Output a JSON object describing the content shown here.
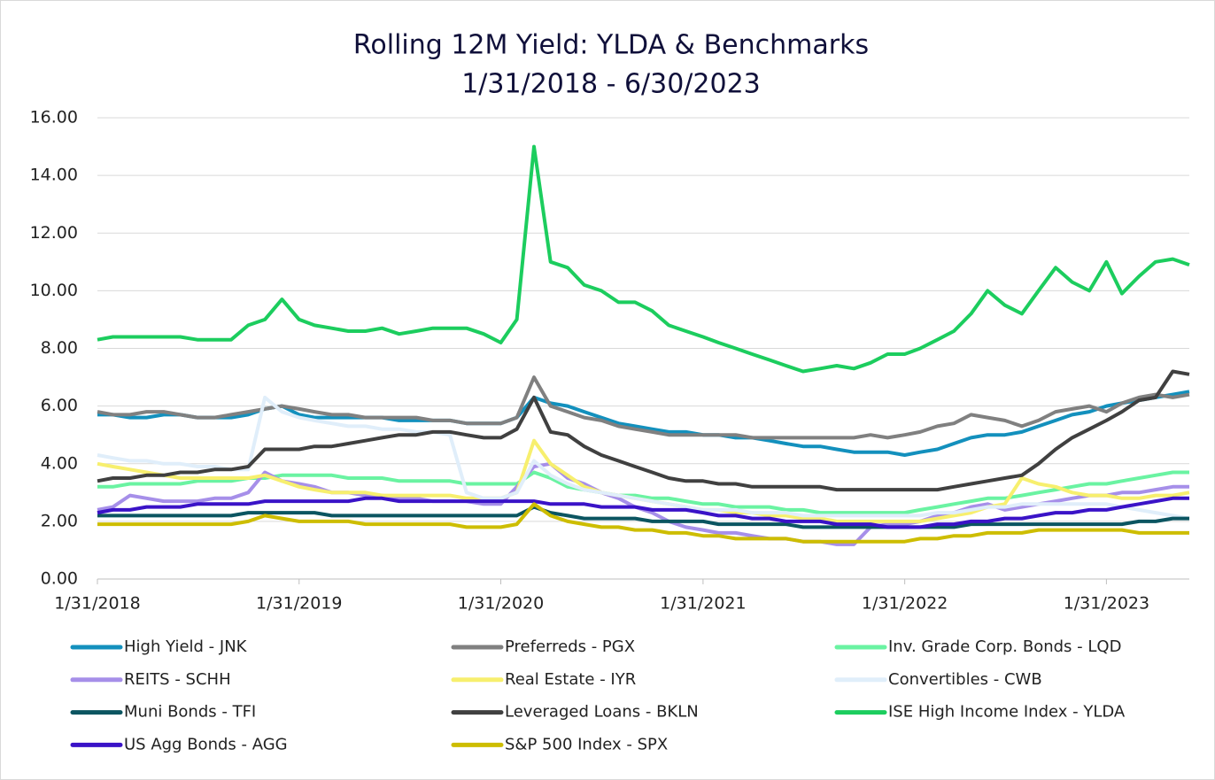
{
  "chart_data": {
    "type": "line",
    "title": "Rolling 12M Yield: YLDA & Benchmarks",
    "subtitle": "1/31/2018 - 6/30/2023",
    "x": [
      "1/31/2018",
      "2/28/2018",
      "3/31/2018",
      "4/30/2018",
      "5/31/2018",
      "6/30/2018",
      "7/31/2018",
      "8/31/2018",
      "9/30/2018",
      "10/31/2018",
      "11/30/2018",
      "12/31/2018",
      "1/31/2019",
      "2/28/2019",
      "3/31/2019",
      "4/30/2019",
      "5/31/2019",
      "6/30/2019",
      "7/31/2019",
      "8/31/2019",
      "9/30/2019",
      "10/31/2019",
      "11/30/2019",
      "12/31/2019",
      "1/31/2020",
      "2/29/2020",
      "3/31/2020",
      "4/30/2020",
      "5/31/2020",
      "6/30/2020",
      "7/31/2020",
      "8/31/2020",
      "9/30/2020",
      "10/31/2020",
      "11/30/2020",
      "12/31/2020",
      "1/31/2021",
      "2/28/2021",
      "3/31/2021",
      "4/30/2021",
      "5/31/2021",
      "6/30/2021",
      "7/31/2021",
      "8/31/2021",
      "9/30/2021",
      "10/31/2021",
      "11/30/2021",
      "12/31/2021",
      "1/31/2022",
      "2/28/2022",
      "3/31/2022",
      "4/30/2022",
      "5/31/2022",
      "6/30/2022",
      "7/31/2022",
      "8/31/2022",
      "9/30/2022",
      "10/31/2022",
      "11/30/2022",
      "12/31/2022",
      "1/31/2023",
      "2/28/2023",
      "3/31/2023",
      "4/30/2023",
      "5/31/2023",
      "6/30/2023"
    ],
    "xlim": [
      "1/31/2018",
      "6/30/2023"
    ],
    "xticks": [
      "1/31/2018",
      "1/31/2019",
      "1/31/2020",
      "1/31/2021",
      "1/31/2022",
      "1/31/2023"
    ],
    "ylim": [
      0,
      16
    ],
    "yticks": [
      {
        "value": 0,
        "label": "0.00"
      },
      {
        "value": 2,
        "label": "2.00"
      },
      {
        "value": 4,
        "label": "4.00"
      },
      {
        "value": 6,
        "label": "6.00"
      },
      {
        "value": 8,
        "label": "8.00"
      },
      {
        "value": 10,
        "label": "10.00"
      },
      {
        "value": 12,
        "label": "12.00"
      },
      {
        "value": 14,
        "label": "14.00"
      },
      {
        "value": 16,
        "label": "16.00"
      }
    ],
    "grid": true,
    "series": [
      {
        "name": "High Yield - JNK",
        "color": "#1390bd",
        "values": [
          5.7,
          5.7,
          5.6,
          5.6,
          5.7,
          5.7,
          5.6,
          5.6,
          5.6,
          5.7,
          5.9,
          6.0,
          5.7,
          5.6,
          5.6,
          5.6,
          5.6,
          5.6,
          5.5,
          5.5,
          5.5,
          5.5,
          5.4,
          5.4,
          5.4,
          5.6,
          6.3,
          6.1,
          6.0,
          5.8,
          5.6,
          5.4,
          5.3,
          5.2,
          5.1,
          5.1,
          5.0,
          5.0,
          4.9,
          4.9,
          4.8,
          4.7,
          4.6,
          4.6,
          4.5,
          4.4,
          4.4,
          4.4,
          4.3,
          4.4,
          4.5,
          4.7,
          4.9,
          5.0,
          5.0,
          5.1,
          5.3,
          5.5,
          5.7,
          5.8,
          6.0,
          6.1,
          6.2,
          6.3,
          6.4,
          6.5
        ]
      },
      {
        "name": "Preferreds - PGX",
        "color": "#808080",
        "values": [
          5.8,
          5.7,
          5.7,
          5.8,
          5.8,
          5.7,
          5.6,
          5.6,
          5.7,
          5.8,
          5.9,
          6.0,
          5.9,
          5.8,
          5.7,
          5.7,
          5.6,
          5.6,
          5.6,
          5.6,
          5.5,
          5.5,
          5.4,
          5.4,
          5.4,
          5.6,
          7.0,
          6.0,
          5.8,
          5.6,
          5.5,
          5.3,
          5.2,
          5.1,
          5.0,
          5.0,
          5.0,
          5.0,
          5.0,
          4.9,
          4.9,
          4.9,
          4.9,
          4.9,
          4.9,
          4.9,
          5.0,
          4.9,
          5.0,
          5.1,
          5.3,
          5.4,
          5.7,
          5.6,
          5.5,
          5.3,
          5.5,
          5.8,
          5.9,
          6.0,
          5.8,
          6.1,
          6.3,
          6.4,
          6.3,
          6.4
        ]
      },
      {
        "name": "Inv. Grade Corp. Bonds - LQD",
        "color": "#6af3a2",
        "values": [
          3.2,
          3.2,
          3.3,
          3.3,
          3.3,
          3.3,
          3.4,
          3.4,
          3.4,
          3.5,
          3.5,
          3.6,
          3.6,
          3.6,
          3.6,
          3.5,
          3.5,
          3.5,
          3.4,
          3.4,
          3.4,
          3.4,
          3.3,
          3.3,
          3.3,
          3.3,
          3.7,
          3.5,
          3.2,
          3.1,
          3.0,
          2.9,
          2.9,
          2.8,
          2.8,
          2.7,
          2.6,
          2.6,
          2.5,
          2.5,
          2.5,
          2.4,
          2.4,
          2.3,
          2.3,
          2.3,
          2.3,
          2.3,
          2.3,
          2.4,
          2.5,
          2.6,
          2.7,
          2.8,
          2.8,
          2.9,
          3.0,
          3.1,
          3.2,
          3.3,
          3.3,
          3.4,
          3.5,
          3.6,
          3.7,
          3.7
        ]
      },
      {
        "name": "REITS - SCHH",
        "color": "#a68fe9",
        "values": [
          2.4,
          2.5,
          2.9,
          2.8,
          2.7,
          2.7,
          2.7,
          2.8,
          2.8,
          3.0,
          3.7,
          3.4,
          3.3,
          3.2,
          3.0,
          3.0,
          2.9,
          2.9,
          2.8,
          2.8,
          2.7,
          2.7,
          2.7,
          2.6,
          2.6,
          3.2,
          3.9,
          4.0,
          3.5,
          3.3,
          3.0,
          2.8,
          2.5,
          2.3,
          2.0,
          1.8,
          1.7,
          1.6,
          1.6,
          1.5,
          1.4,
          1.4,
          1.3,
          1.3,
          1.2,
          1.2,
          1.8,
          1.9,
          1.9,
          2.0,
          2.2,
          2.3,
          2.5,
          2.6,
          2.4,
          2.5,
          2.6,
          2.7,
          2.8,
          2.9,
          2.9,
          3.0,
          3.0,
          3.1,
          3.2,
          3.2
        ]
      },
      {
        "name": "Real Estate - IYR",
        "color": "#f7ef6e",
        "values": [
          4.0,
          3.9,
          3.8,
          3.7,
          3.6,
          3.5,
          3.5,
          3.5,
          3.5,
          3.5,
          3.6,
          3.4,
          3.2,
          3.1,
          3.0,
          3.0,
          3.0,
          2.9,
          2.9,
          2.9,
          2.9,
          2.9,
          2.8,
          2.8,
          2.8,
          3.0,
          4.8,
          4.0,
          3.6,
          3.2,
          3.0,
          2.9,
          2.8,
          2.7,
          2.6,
          2.5,
          2.4,
          2.4,
          2.3,
          2.3,
          2.2,
          2.2,
          2.1,
          2.1,
          2.0,
          2.0,
          2.0,
          2.0,
          2.0,
          2.0,
          2.1,
          2.2,
          2.3,
          2.5,
          2.6,
          3.5,
          3.3,
          3.2,
          3.0,
          2.9,
          2.9,
          2.8,
          2.8,
          2.9,
          2.9,
          3.0
        ]
      },
      {
        "name": "Convertibles - CWB",
        "color": "#e0eefa",
        "values": [
          4.3,
          4.2,
          4.1,
          4.1,
          4.0,
          4.0,
          3.9,
          3.9,
          3.8,
          3.8,
          6.3,
          5.8,
          5.6,
          5.5,
          5.4,
          5.3,
          5.3,
          5.2,
          5.2,
          5.1,
          5.1,
          5.0,
          3.0,
          2.8,
          2.8,
          3.0,
          4.1,
          3.6,
          3.3,
          3.1,
          3.0,
          2.9,
          2.8,
          2.7,
          2.6,
          2.5,
          2.4,
          2.4,
          2.4,
          2.3,
          2.3,
          2.3,
          2.2,
          2.2,
          2.2,
          2.2,
          2.2,
          2.2,
          2.2,
          2.2,
          2.3,
          2.3,
          2.4,
          2.5,
          2.5,
          2.6,
          2.6,
          2.6,
          2.6,
          2.6,
          2.6,
          2.5,
          2.4,
          2.3,
          2.2,
          2.1
        ]
      },
      {
        "name": "Muni Bonds - TFI",
        "color": "#0b5561",
        "values": [
          2.2,
          2.2,
          2.2,
          2.2,
          2.2,
          2.2,
          2.2,
          2.2,
          2.2,
          2.3,
          2.3,
          2.3,
          2.3,
          2.3,
          2.2,
          2.2,
          2.2,
          2.2,
          2.2,
          2.2,
          2.2,
          2.2,
          2.2,
          2.2,
          2.2,
          2.2,
          2.5,
          2.3,
          2.2,
          2.1,
          2.1,
          2.1,
          2.1,
          2.0,
          2.0,
          2.0,
          2.0,
          1.9,
          1.9,
          1.9,
          1.9,
          1.9,
          1.8,
          1.8,
          1.8,
          1.8,
          1.8,
          1.8,
          1.8,
          1.8,
          1.8,
          1.8,
          1.9,
          1.9,
          1.9,
          1.9,
          1.9,
          1.9,
          1.9,
          1.9,
          1.9,
          1.9,
          2.0,
          2.0,
          2.1,
          2.1
        ]
      },
      {
        "name": "Leveraged Loans - BKLN",
        "color": "#404040",
        "values": [
          3.4,
          3.5,
          3.5,
          3.6,
          3.6,
          3.7,
          3.7,
          3.8,
          3.8,
          3.9,
          4.5,
          4.5,
          4.5,
          4.6,
          4.6,
          4.7,
          4.8,
          4.9,
          5.0,
          5.0,
          5.1,
          5.1,
          5.0,
          4.9,
          4.9,
          5.2,
          6.3,
          5.1,
          5.0,
          4.6,
          4.3,
          4.1,
          3.9,
          3.7,
          3.5,
          3.4,
          3.4,
          3.3,
          3.3,
          3.2,
          3.2,
          3.2,
          3.2,
          3.2,
          3.1,
          3.1,
          3.1,
          3.1,
          3.1,
          3.1,
          3.1,
          3.2,
          3.3,
          3.4,
          3.5,
          3.6,
          4.0,
          4.5,
          4.9,
          5.2,
          5.5,
          5.8,
          6.2,
          6.3,
          7.2,
          7.1
        ]
      },
      {
        "name": "ISE High Income Index - YLDA",
        "color": "#1ccd5e",
        "values": [
          8.3,
          8.4,
          8.4,
          8.4,
          8.4,
          8.4,
          8.3,
          8.3,
          8.3,
          8.8,
          9.0,
          9.7,
          9.0,
          8.8,
          8.7,
          8.6,
          8.6,
          8.7,
          8.5,
          8.6,
          8.7,
          8.7,
          8.7,
          8.5,
          8.2,
          9.0,
          15.0,
          11.0,
          10.8,
          10.2,
          10.0,
          9.6,
          9.6,
          9.3,
          8.8,
          8.6,
          8.4,
          8.2,
          8.0,
          7.8,
          7.6,
          7.4,
          7.2,
          7.3,
          7.4,
          7.3,
          7.5,
          7.8,
          7.8,
          8.0,
          8.3,
          8.6,
          9.2,
          10.0,
          9.5,
          9.2,
          10.0,
          10.8,
          10.3,
          10.0,
          11.0,
          9.9,
          10.5,
          11.0,
          11.1,
          10.9
        ]
      },
      {
        "name": "US Agg Bonds - AGG",
        "color": "#3a13c7",
        "values": [
          2.3,
          2.4,
          2.4,
          2.5,
          2.5,
          2.5,
          2.6,
          2.6,
          2.6,
          2.6,
          2.7,
          2.7,
          2.7,
          2.7,
          2.7,
          2.7,
          2.8,
          2.8,
          2.7,
          2.7,
          2.7,
          2.7,
          2.7,
          2.7,
          2.7,
          2.7,
          2.7,
          2.6,
          2.6,
          2.6,
          2.5,
          2.5,
          2.5,
          2.4,
          2.4,
          2.4,
          2.3,
          2.2,
          2.2,
          2.1,
          2.1,
          2.0,
          2.0,
          2.0,
          1.9,
          1.9,
          1.9,
          1.8,
          1.8,
          1.8,
          1.9,
          1.9,
          2.0,
          2.0,
          2.1,
          2.1,
          2.2,
          2.3,
          2.3,
          2.4,
          2.4,
          2.5,
          2.6,
          2.7,
          2.8,
          2.8
        ]
      },
      {
        "name": "S&P 500 Index - SPX",
        "color": "#cdbd00",
        "values": [
          1.9,
          1.9,
          1.9,
          1.9,
          1.9,
          1.9,
          1.9,
          1.9,
          1.9,
          2.0,
          2.2,
          2.1,
          2.0,
          2.0,
          2.0,
          2.0,
          1.9,
          1.9,
          1.9,
          1.9,
          1.9,
          1.9,
          1.8,
          1.8,
          1.8,
          1.9,
          2.6,
          2.2,
          2.0,
          1.9,
          1.8,
          1.8,
          1.7,
          1.7,
          1.6,
          1.6,
          1.5,
          1.5,
          1.4,
          1.4,
          1.4,
          1.4,
          1.3,
          1.3,
          1.3,
          1.3,
          1.3,
          1.3,
          1.3,
          1.4,
          1.4,
          1.5,
          1.5,
          1.6,
          1.6,
          1.6,
          1.7,
          1.7,
          1.7,
          1.7,
          1.7,
          1.7,
          1.6,
          1.6,
          1.6,
          1.6
        ]
      }
    ]
  }
}
